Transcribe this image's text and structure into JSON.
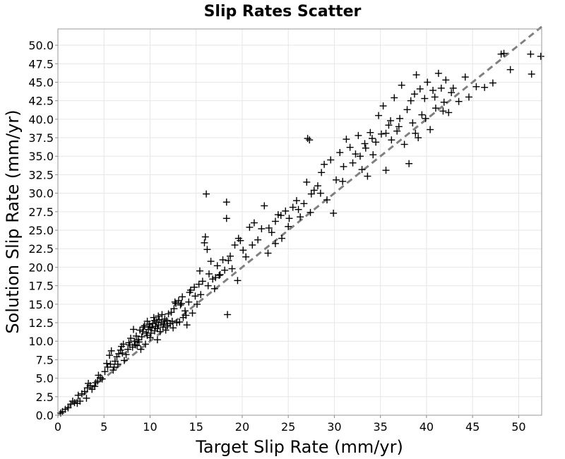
{
  "chart_data": {
    "type": "scatter",
    "title": "Slip Rates Scatter",
    "xlabel": "Target Slip Rate (mm/yr)",
    "ylabel": "Solution Slip Rate (mm/yr)",
    "xlim": [
      0,
      52.5
    ],
    "ylim": [
      0,
      52.2
    ],
    "x_ticks": [
      "0",
      "5",
      "10",
      "15",
      "20",
      "25",
      "30",
      "35",
      "40",
      "45",
      "50"
    ],
    "y_ticks": [
      "0.0",
      "2.5",
      "5.0",
      "7.5",
      "10.0",
      "12.5",
      "15.0",
      "17.5",
      "20.0",
      "22.5",
      "25.0",
      "27.5",
      "30.0",
      "32.5",
      "35.0",
      "37.5",
      "40.0",
      "42.5",
      "45.0",
      "47.5",
      "50.0"
    ],
    "grid": true,
    "reference_line": {
      "style": "dashed",
      "color": "#808080",
      "from": [
        0,
        0
      ],
      "to": [
        52.5,
        52.5
      ]
    },
    "marker_color": "#000000",
    "series": [
      {
        "marker": "plus",
        "points": [
          [
            0.3,
            0.3
          ],
          [
            0.5,
            0.5
          ],
          [
            0.8,
            0.8
          ],
          [
            1.1,
            1.0
          ],
          [
            1.4,
            1.5
          ],
          [
            1.8,
            1.7
          ],
          [
            2.2,
            2.7
          ],
          [
            2.6,
            2.9
          ],
          [
            2.4,
            1.9
          ],
          [
            3.1,
            2.3
          ],
          [
            3.2,
            3.7
          ],
          [
            3.5,
            4.0
          ],
          [
            3.3,
            4.3
          ],
          [
            4.1,
            4.4
          ],
          [
            4.3,
            4.6
          ],
          [
            4.6,
            5.1
          ],
          [
            4.4,
            5.4
          ],
          [
            5.1,
            5.9
          ],
          [
            5.4,
            6.5
          ],
          [
            5.7,
            6.9
          ],
          [
            5.6,
            8.1
          ],
          [
            5.8,
            8.7
          ],
          [
            6.1,
            6.5
          ],
          [
            6.2,
            7.3
          ],
          [
            6.4,
            7.9
          ],
          [
            6.6,
            8.3
          ],
          [
            6.8,
            8.8
          ],
          [
            6.9,
            9.3
          ],
          [
            7.1,
            9.6
          ],
          [
            7.2,
            7.4
          ],
          [
            7.4,
            8.2
          ],
          [
            7.6,
            8.9
          ],
          [
            7.7,
            9.8
          ],
          [
            7.9,
            10.4
          ],
          [
            8.1,
            9.2
          ],
          [
            8.3,
            10.0
          ],
          [
            8.5,
            10.7
          ],
          [
            8.4,
            9.5
          ],
          [
            8.7,
            10.2
          ],
          [
            8.9,
            11.5
          ],
          [
            8.8,
            9.9
          ],
          [
            9.1,
            10.6
          ],
          [
            9.3,
            11.9
          ],
          [
            9.2,
            11.3
          ],
          [
            9.4,
            12.1
          ],
          [
            9.5,
            9.6
          ],
          [
            9.7,
            10.8
          ],
          [
            9.8,
            11.6
          ],
          [
            9.9,
            12.3
          ],
          [
            10.0,
            10.5
          ],
          [
            10.1,
            11.1
          ],
          [
            10.2,
            11.8
          ],
          [
            10.3,
            12.4
          ],
          [
            10.4,
            13.2
          ],
          [
            10.5,
            11.4
          ],
          [
            10.6,
            12.0
          ],
          [
            10.7,
            12.6
          ],
          [
            10.8,
            11.7
          ],
          [
            10.9,
            12.2
          ],
          [
            11.0,
            12.9
          ],
          [
            11.1,
            11.3
          ],
          [
            11.2,
            12.5
          ],
          [
            11.3,
            13.6
          ],
          [
            11.4,
            11.9
          ],
          [
            11.5,
            12.3
          ],
          [
            11.6,
            13.0
          ],
          [
            11.8,
            12.8
          ],
          [
            12.0,
            13.7
          ],
          [
            12.2,
            12.4
          ],
          [
            12.4,
            12.7
          ],
          [
            12.6,
            14.4
          ],
          [
            12.8,
            15.1
          ],
          [
            12.9,
            12.5
          ],
          [
            13.1,
            15.5
          ],
          [
            13.3,
            14.9
          ],
          [
            13.5,
            16.0
          ],
          [
            13.6,
            13.2
          ],
          [
            13.8,
            14.1
          ],
          [
            14.0,
            12.2
          ],
          [
            14.2,
            15.3
          ],
          [
            14.4,
            16.9
          ],
          [
            14.6,
            13.8
          ],
          [
            14.8,
            17.3
          ],
          [
            15.1,
            15.0
          ],
          [
            15.3,
            17.7
          ],
          [
            15.5,
            16.3
          ],
          [
            15.7,
            18.1
          ],
          [
            15.9,
            23.3
          ],
          [
            16.0,
            24.1
          ],
          [
            16.1,
            29.9
          ],
          [
            16.2,
            22.4
          ],
          [
            16.4,
            19.1
          ],
          [
            16.6,
            20.8
          ],
          [
            16.8,
            18.4
          ],
          [
            17.0,
            17.1
          ],
          [
            17.3,
            20.2
          ],
          [
            17.6,
            19.0
          ],
          [
            17.9,
            21.0
          ],
          [
            18.1,
            19.6
          ],
          [
            18.3,
            28.8
          ],
          [
            18.3,
            26.6
          ],
          [
            18.5,
            20.9
          ],
          [
            18.4,
            13.6
          ],
          [
            18.7,
            21.5
          ],
          [
            19.2,
            23.0
          ],
          [
            19.5,
            18.2
          ],
          [
            19.8,
            23.6
          ],
          [
            20.1,
            22.3
          ],
          [
            20.4,
            21.4
          ],
          [
            20.8,
            25.4
          ],
          [
            21.3,
            26.0
          ],
          [
            21.7,
            23.7
          ],
          [
            22.1,
            25.2
          ],
          [
            22.4,
            28.3
          ],
          [
            22.8,
            21.9
          ],
          [
            23.2,
            24.7
          ],
          [
            23.6,
            26.2
          ],
          [
            23.9,
            27.1
          ],
          [
            24.3,
            23.9
          ],
          [
            24.7,
            27.6
          ],
          [
            25.1,
            26.6
          ],
          [
            25.5,
            28.1
          ],
          [
            25.9,
            29.0
          ],
          [
            26.3,
            26.8
          ],
          [
            26.7,
            28.6
          ],
          [
            27.0,
            31.5
          ],
          [
            27.1,
            37.4
          ],
          [
            27.3,
            37.2
          ],
          [
            27.5,
            29.9
          ],
          [
            27.8,
            30.4
          ],
          [
            28.2,
            31.0
          ],
          [
            28.6,
            32.8
          ],
          [
            28.9,
            33.9
          ],
          [
            29.2,
            29.1
          ],
          [
            29.6,
            34.5
          ],
          [
            29.9,
            27.3
          ],
          [
            30.2,
            31.8
          ],
          [
            30.6,
            35.5
          ],
          [
            31.0,
            33.6
          ],
          [
            31.3,
            37.3
          ],
          [
            31.7,
            36.2
          ],
          [
            32.0,
            34.1
          ],
          [
            32.3,
            35.3
          ],
          [
            32.6,
            37.8
          ],
          [
            33.0,
            33.2
          ],
          [
            33.3,
            36.7
          ],
          [
            33.6,
            32.3
          ],
          [
            33.9,
            38.2
          ],
          [
            34.2,
            35.2
          ],
          [
            34.5,
            36.9
          ],
          [
            34.8,
            40.5
          ],
          [
            35.1,
            38.0
          ],
          [
            35.3,
            41.8
          ],
          [
            35.6,
            33.1
          ],
          [
            35.9,
            39.2
          ],
          [
            36.2,
            37.2
          ],
          [
            36.5,
            42.9
          ],
          [
            36.8,
            38.4
          ],
          [
            37.1,
            40.1
          ],
          [
            37.3,
            44.6
          ],
          [
            37.6,
            36.6
          ],
          [
            37.9,
            41.3
          ],
          [
            38.1,
            34.0
          ],
          [
            38.3,
            42.5
          ],
          [
            38.5,
            39.5
          ],
          [
            38.7,
            43.4
          ],
          [
            38.9,
            46.0
          ],
          [
            39.1,
            37.5
          ],
          [
            39.3,
            44.1
          ],
          [
            39.5,
            40.6
          ],
          [
            39.8,
            42.8
          ],
          [
            40.1,
            45.0
          ],
          [
            40.4,
            38.6
          ],
          [
            40.7,
            43.9
          ],
          [
            41.0,
            41.5
          ],
          [
            41.3,
            46.2
          ],
          [
            41.6,
            44.2
          ],
          [
            41.9,
            42.3
          ],
          [
            42.1,
            45.3
          ],
          [
            42.4,
            40.9
          ],
          [
            42.7,
            43.6
          ],
          [
            43.5,
            42.4
          ],
          [
            44.2,
            45.7
          ],
          [
            44.6,
            43.0
          ],
          [
            45.4,
            44.4
          ],
          [
            46.3,
            44.3
          ],
          [
            47.2,
            44.9
          ],
          [
            48.1,
            48.8
          ],
          [
            48.4,
            48.9
          ],
          [
            49.1,
            46.7
          ],
          [
            51.3,
            48.8
          ],
          [
            51.4,
            46.1
          ],
          [
            52.4,
            48.5
          ],
          [
            26.1,
            27.8
          ],
          [
            24.2,
            27.0
          ],
          [
            22.9,
            25.3
          ],
          [
            19.6,
            23.9
          ],
          [
            17.5,
            18.9
          ],
          [
            15.4,
            19.5
          ],
          [
            14.3,
            16.6
          ],
          [
            13.9,
            13.5
          ],
          [
            13.2,
            12.6
          ],
          [
            12.7,
            15.3
          ],
          [
            12.3,
            13.9
          ],
          [
            11.9,
            12.1
          ],
          [
            11.7,
            11.5
          ],
          [
            10.8,
            10.2
          ],
          [
            10.5,
            12.8
          ],
          [
            10.0,
            11.9
          ],
          [
            9.6,
            11.1
          ],
          [
            9.0,
            8.9
          ],
          [
            8.6,
            9.4
          ],
          [
            8.2,
            11.6
          ],
          [
            7.8,
            9.5
          ],
          [
            7.0,
            8.4
          ],
          [
            6.5,
            6.9
          ],
          [
            6.0,
            6.1
          ],
          [
            5.3,
            7.0
          ],
          [
            4.8,
            4.9
          ],
          [
            4.0,
            3.9
          ],
          [
            3.7,
            3.5
          ],
          [
            2.9,
            3.2
          ],
          [
            2.1,
            1.6
          ],
          [
            1.6,
            1.9
          ],
          [
            9.7,
            12.7
          ],
          [
            10.9,
            13.4
          ],
          [
            11.6,
            12.7
          ],
          [
            12.5,
            11.8
          ],
          [
            13.4,
            15.1
          ],
          [
            14.9,
            16.1
          ],
          [
            16.3,
            17.5
          ],
          [
            17.1,
            18.6
          ],
          [
            18.9,
            19.8
          ],
          [
            21.1,
            23.0
          ],
          [
            23.6,
            23.2
          ],
          [
            25.0,
            25.5
          ],
          [
            27.4,
            27.4
          ],
          [
            28.5,
            30.0
          ],
          [
            30.9,
            31.6
          ],
          [
            32.8,
            35.0
          ],
          [
            34.1,
            37.4
          ],
          [
            35.6,
            38.1
          ],
          [
            37.0,
            39.0
          ],
          [
            38.8,
            38.1
          ],
          [
            39.9,
            40.1
          ],
          [
            40.9,
            43.0
          ],
          [
            41.8,
            41.1
          ],
          [
            42.9,
            44.2
          ],
          [
            33.4,
            36.1
          ],
          [
            36.1,
            39.8
          ]
        ]
      }
    ]
  }
}
